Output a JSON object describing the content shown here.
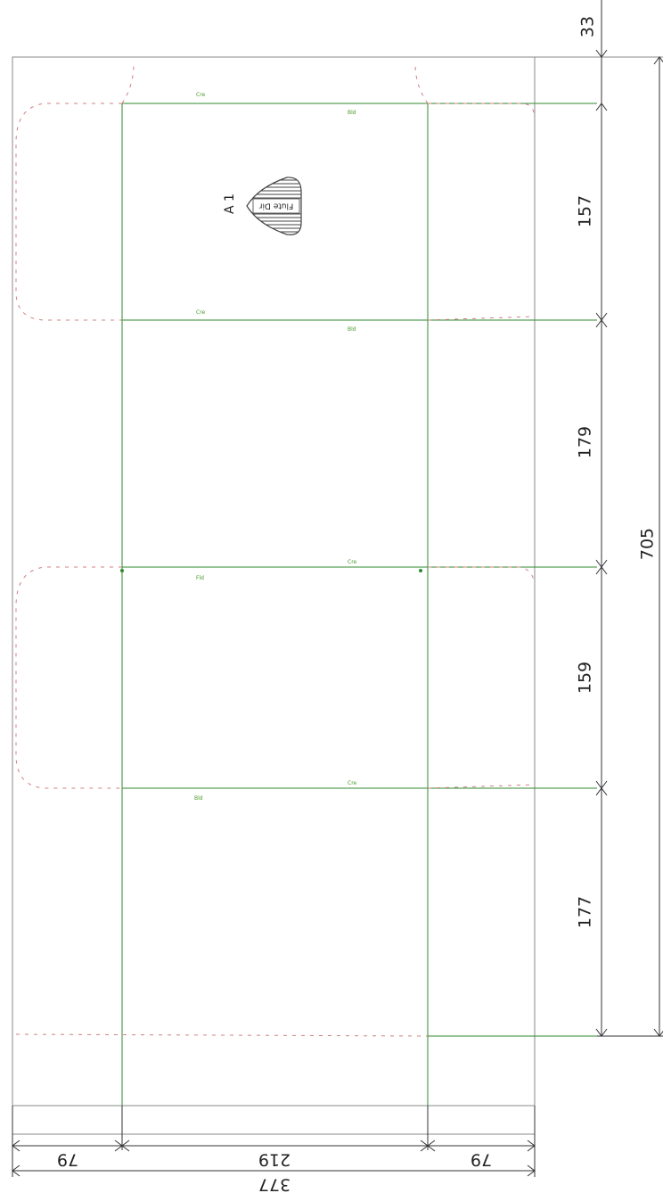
{
  "dimensions": {
    "top_margin": "33",
    "panel_1": "157",
    "panel_2": "179",
    "panel_3": "159",
    "panel_4": "177",
    "total_height": "705",
    "flap_left": "79",
    "width_center": "219",
    "flap_right": "79",
    "total_width": "377"
  },
  "panel_label": "A 1",
  "flute_label": "Flute Dir",
  "crease_marks": {
    "m1": "Cre",
    "m2": "Bld",
    "m3": "Cre",
    "m4": "Bld",
    "m5": "Cre",
    "m6": "Fld",
    "m7": "Cre",
    "m8": "Bld"
  },
  "colors": {
    "outline": "#8a8a8a",
    "crease": "#2f8a2f",
    "perforation": "#d08080",
    "dimension": "#333333",
    "hatch": "#444444"
  }
}
